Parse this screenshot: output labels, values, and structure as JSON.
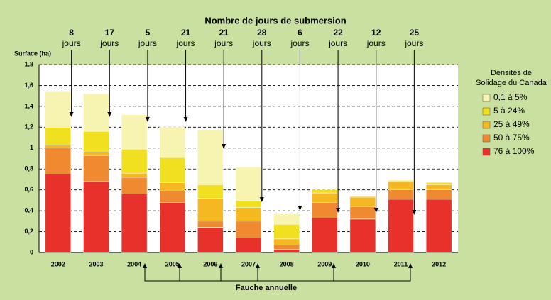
{
  "chart_data": {
    "type": "bar",
    "stacked": true,
    "title": "Nombre de jours de submersion",
    "y_label": "Surface (ha)",
    "days": [
      8,
      17,
      5,
      21,
      21,
      28,
      6,
      22,
      12,
      25
    ],
    "days_unit": "jours",
    "mowing_label": "Fauche annuelle",
    "legend_title": "Densités de Solidage du Canada",
    "categories": [
      "2002",
      "2003",
      "2004",
      "2005",
      "2006",
      "2007",
      "2008",
      "2009",
      "2010",
      "2011",
      "2012"
    ],
    "series": [
      {
        "name": "76 à 100%",
        "color": "#e8312a",
        "values": [
          0.75,
          0.68,
          0.56,
          0.48,
          0.24,
          0.14,
          0.03,
          0.33,
          0.32,
          0.51,
          0.51
        ]
      },
      {
        "name": "50 à 75%",
        "color": "#f08a30",
        "values": [
          0.25,
          0.25,
          0.16,
          0.11,
          0.06,
          0.16,
          0.04,
          0.15,
          0.12,
          0.09,
          0.09
        ]
      },
      {
        "name": "25 à 49%",
        "color": "#f5b820",
        "values": [
          0.03,
          0.03,
          0.04,
          0.08,
          0.22,
          0.13,
          0.06,
          0.09,
          0.09,
          0.08,
          0.05
        ]
      },
      {
        "name": "5 à 24%",
        "color": "#f0e020",
        "values": [
          0.17,
          0.2,
          0.23,
          0.24,
          0.13,
          0.07,
          0.14,
          0.03,
          0.01,
          0.01,
          0.02
        ]
      },
      {
        "name": "0,1 à 5%",
        "color": "#f7f3b0",
        "values": [
          0.34,
          0.36,
          0.33,
          0.29,
          0.52,
          0.32,
          0.1,
          0,
          0,
          0,
          0
        ]
      }
    ],
    "ylim": [
      0,
      1.8
    ],
    "yticks": [
      0,
      {
        "value": 0.2,
        "label": "0,2"
      },
      {
        "value": 0.4,
        "label": "0,4"
      },
      {
        "value": 0.6,
        "label": "0,6"
      },
      {
        "value": 0.8,
        "label": "0,8"
      },
      1,
      {
        "value": 1.2,
        "label": "1,2"
      },
      {
        "value": 1.4,
        "label": "1,4"
      },
      {
        "value": 1.6,
        "label": "1,6"
      },
      {
        "value": 1.8,
        "label": "1,8"
      }
    ],
    "grid": true
  }
}
